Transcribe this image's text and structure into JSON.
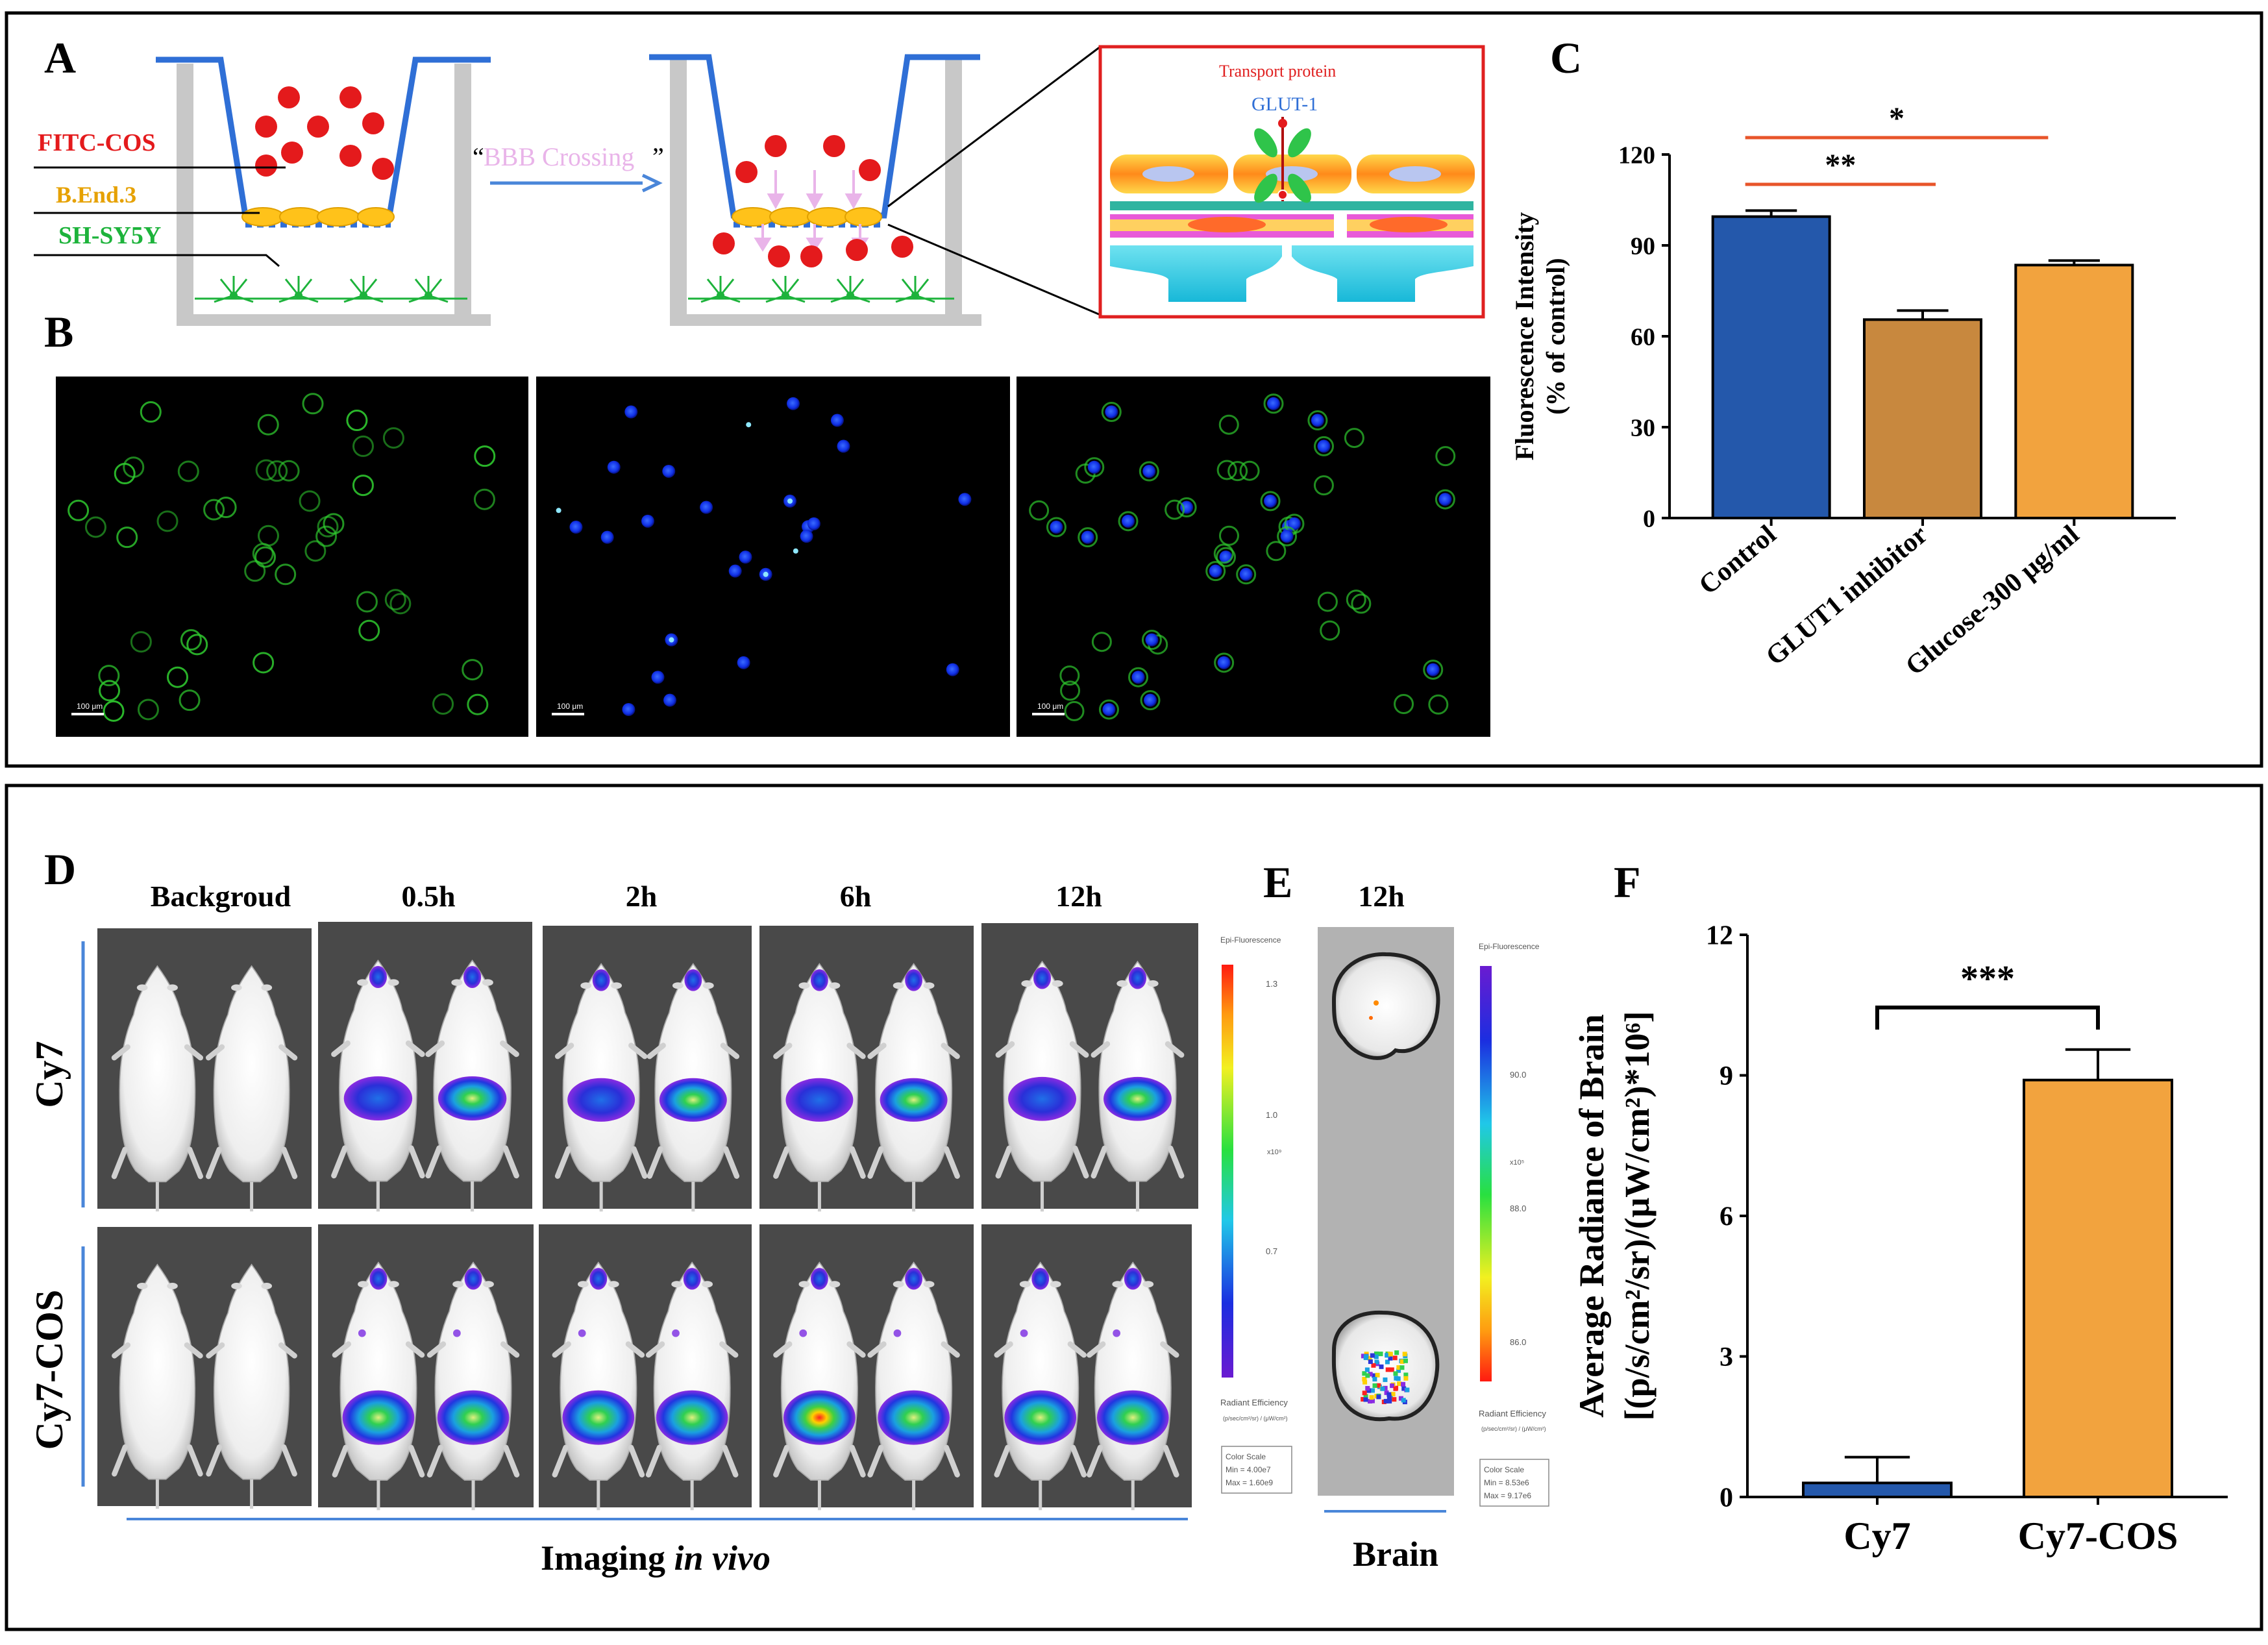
{
  "panels": {
    "A": "A",
    "B": "B",
    "C": "C",
    "D": "D",
    "E": "E",
    "F": "F"
  },
  "panel_a": {
    "label_fitc": "FITC-COS",
    "label_bend": "B.End.3",
    "label_shsy": "SH-SY5Y",
    "crossing_text": "BBB Crossing",
    "crossing_open": "“",
    "crossing_close": "”",
    "inset_title": "Transport protein",
    "inset_protein": "GLUT-1",
    "colors": {
      "fitc": "#e41a1c",
      "bend": "#e6a100",
      "shsy": "#1db33b",
      "arrow": "#4a86d9",
      "crossing": "#e9b4e9"
    }
  },
  "panel_b": {
    "scale_bars": [
      "100 μm",
      "100 μm",
      "100 μm"
    ]
  },
  "panel_c": {
    "chart_data": {
      "type": "bar",
      "categories": [
        "Control",
        "GLUT1 inhibitor",
        "Glucose-300 μg/ml"
      ],
      "values": [
        99.5,
        65.5,
        83.5
      ],
      "errors": [
        2,
        3,
        1.5
      ],
      "colors": [
        "#2458ab",
        "#c8883e",
        "#f2a33e"
      ],
      "ylabel_line1": "Fluorescence Intensity",
      "ylabel_line2": "(% of control)",
      "yticks": [
        "0",
        "30",
        "60",
        "90",
        "120"
      ],
      "ylim": [
        0,
        120
      ],
      "significance": [
        {
          "from": 0,
          "to": 1,
          "label": "**"
        },
        {
          "from": 0,
          "to": 2,
          "label": "*"
        }
      ]
    }
  },
  "panel_d": {
    "columns": [
      "Backgroud",
      "0.5h",
      "2h",
      "6h",
      "12h"
    ],
    "rows": [
      "Cy7",
      "Cy7-COS"
    ],
    "caption_main": "Imaging ",
    "caption_italic": "in vivo",
    "colorbar": {
      "title": "Epi-Fluorescence",
      "ticks": [
        "1.3",
        "1.0",
        "0.7"
      ],
      "exponent": "x10⁹",
      "unit_title": "Radiant Efficiency",
      "unit_expr": "(p/sec/cm²/sr) / (μW/cm²)",
      "scale_title": "Color Scale",
      "scale_min": "Min = 4.00e7",
      "scale_max": "Max = 1.60e9"
    }
  },
  "panel_e": {
    "time": "12h",
    "caption": "Brain",
    "colorbar": {
      "title": "Epi-Fluorescence",
      "ticks": [
        "90.0",
        "88.0",
        "86.0"
      ],
      "exponent": "x10⁵",
      "unit_title": "Radiant Efficiency",
      "unit_expr": "(p/sec/cm²/sr) / (μW/cm²)",
      "scale_title": "Color Scale",
      "scale_min": "Min = 8.53e6",
      "scale_max": "Max = 9.17e6"
    }
  },
  "panel_f": {
    "chart_data": {
      "type": "bar",
      "categories": [
        "Cy7",
        "Cy7-COS"
      ],
      "values": [
        0.3,
        8.9
      ],
      "errors": [
        0.55,
        0.65
      ],
      "colors": [
        "#2458ab",
        "#f2a33e"
      ],
      "ylabel_line1": "Average Radiance of Brain",
      "ylabel_line2": "[(p/s/cm²/sr)/(μW/cm²)*10⁶]",
      "yticks": [
        "0",
        "3",
        "6",
        "9",
        "12"
      ],
      "ylim": [
        0,
        12
      ],
      "significance": [
        {
          "from": 0,
          "to": 1,
          "label": "***"
        }
      ]
    }
  }
}
